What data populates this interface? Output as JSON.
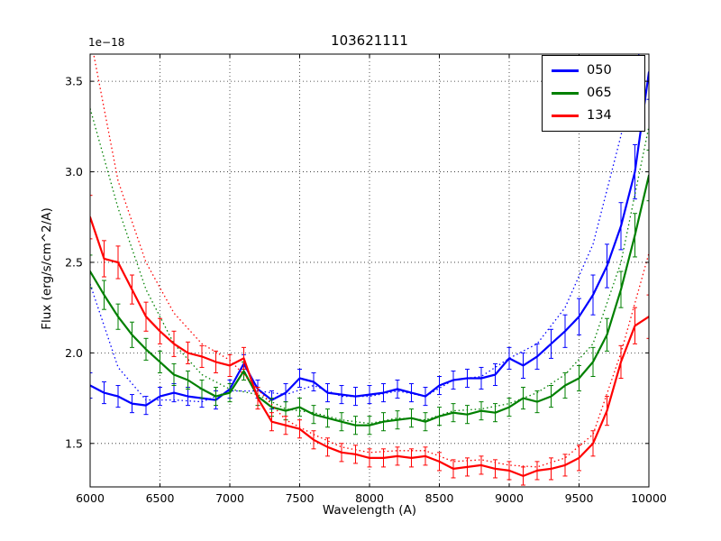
{
  "chart_data": {
    "type": "line",
    "title": "103621111",
    "xlabel": "Wavelength (A)",
    "ylabel": "Flux (erg/s/cm^2/A)",
    "offset_label": "1e−18",
    "xlim": [
      6000,
      10000
    ],
    "ylim": [
      1.26,
      3.65
    ],
    "grid": true,
    "legend_position": "upper right",
    "xtick_values": [
      6000,
      6500,
      7000,
      7500,
      8000,
      8500,
      9000,
      9500,
      10000
    ],
    "xtick_labels": [
      "6000",
      "6500",
      "7000",
      "7500",
      "8000",
      "8500",
      "9000",
      "9500",
      "10000"
    ],
    "ytick_values": [
      1.5,
      2.0,
      2.5,
      3.0,
      3.5
    ],
    "ytick_labels": [
      "1.5",
      "2.0",
      "2.5",
      "3.0",
      "3.5"
    ],
    "x": [
      6000,
      6100,
      6200,
      6300,
      6400,
      6500,
      6600,
      6700,
      6800,
      6900,
      7000,
      7100,
      7200,
      7300,
      7400,
      7500,
      7600,
      7700,
      7800,
      7900,
      8000,
      8100,
      8200,
      8300,
      8400,
      8500,
      8600,
      8700,
      8800,
      8900,
      9000,
      9100,
      9200,
      9300,
      9400,
      9500,
      9600,
      9700,
      9800,
      9900,
      10000
    ],
    "series": [
      {
        "name": "050",
        "color": "#0000ff",
        "values": [
          1.82,
          1.78,
          1.76,
          1.72,
          1.71,
          1.76,
          1.78,
          1.76,
          1.75,
          1.74,
          1.8,
          1.94,
          1.8,
          1.74,
          1.78,
          1.86,
          1.84,
          1.78,
          1.77,
          1.76,
          1.77,
          1.78,
          1.8,
          1.78,
          1.76,
          1.82,
          1.85,
          1.86,
          1.86,
          1.88,
          1.97,
          1.93,
          1.98,
          2.05,
          2.12,
          2.2,
          2.32,
          2.48,
          2.7,
          3.0,
          3.55
        ],
        "errors": [
          0.07,
          0.06,
          0.06,
          0.05,
          0.05,
          0.05,
          0.05,
          0.05,
          0.05,
          0.05,
          0.05,
          0.05,
          0.05,
          0.05,
          0.05,
          0.05,
          0.05,
          0.05,
          0.05,
          0.05,
          0.05,
          0.05,
          0.05,
          0.05,
          0.05,
          0.05,
          0.05,
          0.05,
          0.06,
          0.06,
          0.06,
          0.07,
          0.07,
          0.08,
          0.09,
          0.1,
          0.11,
          0.12,
          0.13,
          0.15,
          0.15
        ],
        "dotted": {
          "x": [
            6000,
            6200,
            6400,
            6600,
            6800,
            7000,
            7200,
            7400,
            7600,
            7800,
            8000,
            8200,
            8400,
            8600,
            8800,
            9000,
            9200,
            9400,
            9600,
            9800,
            10000
          ],
          "values": [
            2.38,
            1.92,
            1.74,
            1.74,
            1.73,
            1.79,
            1.79,
            1.77,
            1.82,
            1.76,
            1.76,
            1.79,
            1.76,
            1.85,
            1.87,
            1.97,
            2.05,
            2.25,
            2.6,
            3.2,
            3.9
          ]
        }
      },
      {
        "name": "065",
        "color": "#008000",
        "values": [
          2.45,
          2.32,
          2.2,
          2.1,
          2.02,
          1.95,
          1.88,
          1.85,
          1.8,
          1.76,
          1.78,
          1.9,
          1.76,
          1.7,
          1.68,
          1.7,
          1.66,
          1.64,
          1.62,
          1.6,
          1.6,
          1.62,
          1.63,
          1.64,
          1.62,
          1.65,
          1.67,
          1.66,
          1.68,
          1.67,
          1.7,
          1.75,
          1.73,
          1.76,
          1.82,
          1.86,
          1.95,
          2.1,
          2.35,
          2.65,
          2.98
        ],
        "errors": [
          0.09,
          0.08,
          0.07,
          0.07,
          0.06,
          0.06,
          0.06,
          0.05,
          0.05,
          0.05,
          0.05,
          0.05,
          0.05,
          0.05,
          0.05,
          0.05,
          0.05,
          0.05,
          0.05,
          0.05,
          0.05,
          0.05,
          0.05,
          0.05,
          0.05,
          0.05,
          0.05,
          0.05,
          0.05,
          0.05,
          0.05,
          0.06,
          0.06,
          0.06,
          0.07,
          0.07,
          0.08,
          0.09,
          0.1,
          0.12,
          0.14
        ],
        "dotted": {
          "x": [
            6000,
            6200,
            6400,
            6600,
            6800,
            7000,
            7200,
            7400,
            7600,
            7800,
            8000,
            8200,
            8400,
            8600,
            8800,
            9000,
            9200,
            9400,
            9600,
            9800,
            10000
          ],
          "values": [
            3.35,
            2.8,
            2.35,
            2.05,
            1.88,
            1.8,
            1.77,
            1.69,
            1.67,
            1.63,
            1.61,
            1.64,
            1.63,
            1.68,
            1.69,
            1.72,
            1.78,
            1.88,
            2.05,
            2.5,
            3.25
          ]
        }
      },
      {
        "name": "134",
        "color": "#ff0000",
        "values": [
          2.75,
          2.52,
          2.5,
          2.35,
          2.2,
          2.12,
          2.05,
          2.0,
          1.98,
          1.95,
          1.93,
          1.97,
          1.75,
          1.62,
          1.6,
          1.58,
          1.52,
          1.48,
          1.45,
          1.44,
          1.42,
          1.42,
          1.43,
          1.42,
          1.43,
          1.4,
          1.36,
          1.37,
          1.38,
          1.36,
          1.35,
          1.32,
          1.35,
          1.36,
          1.38,
          1.42,
          1.5,
          1.68,
          1.95,
          2.15,
          2.2
        ],
        "errors": [
          0.12,
          0.1,
          0.09,
          0.08,
          0.08,
          0.07,
          0.07,
          0.06,
          0.06,
          0.06,
          0.06,
          0.06,
          0.06,
          0.05,
          0.05,
          0.05,
          0.05,
          0.05,
          0.05,
          0.05,
          0.05,
          0.05,
          0.05,
          0.05,
          0.05,
          0.05,
          0.05,
          0.05,
          0.05,
          0.05,
          0.05,
          0.05,
          0.05,
          0.06,
          0.06,
          0.07,
          0.07,
          0.08,
          0.09,
          0.1,
          0.12
        ],
        "dotted": {
          "x": [
            6000,
            6200,
            6400,
            6600,
            6800,
            7000,
            7200,
            7400,
            7600,
            7800,
            8000,
            8200,
            8400,
            8600,
            8800,
            9000,
            9200,
            9400,
            9600,
            9800,
            10000
          ],
          "values": [
            3.75,
            2.95,
            2.5,
            2.22,
            2.05,
            1.96,
            1.8,
            1.63,
            1.55,
            1.48,
            1.45,
            1.46,
            1.46,
            1.4,
            1.41,
            1.38,
            1.37,
            1.42,
            1.55,
            2.0,
            2.55
          ]
        }
      }
    ]
  }
}
